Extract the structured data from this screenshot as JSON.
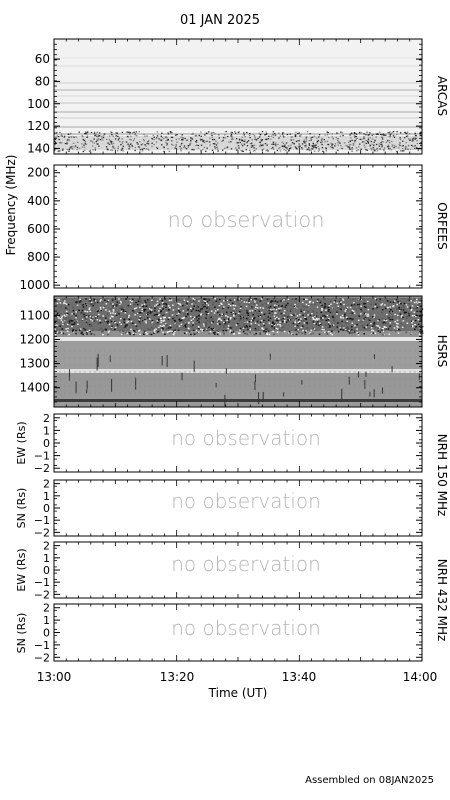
{
  "title": "01 JAN 2025",
  "footer": "Assembled on 08JAN2025",
  "chart_data": [
    {
      "type": "heatmap",
      "instrument": "ARCAS",
      "ylabel": "Frequency (MHz)",
      "yticks": [
        60,
        80,
        100,
        120,
        140
      ],
      "ylim": [
        145,
        42
      ],
      "observed": true
    },
    {
      "type": "heatmap",
      "instrument": "ORFEES",
      "yticks": [
        200,
        400,
        600,
        800,
        1000
      ],
      "ylim": [
        1020,
        145
      ],
      "observed": false,
      "annotation": "no observation"
    },
    {
      "type": "heatmap",
      "instrument": "HSRS",
      "yticks": [
        1100,
        1200,
        1300,
        1400
      ],
      "ylim": [
        1480,
        1020
      ],
      "observed": true
    },
    {
      "type": "heatmap",
      "instrument": "NRH 150 MHz",
      "ylabel": "EW (Rs)",
      "yticks": [
        2,
        1,
        0,
        -1,
        -2
      ],
      "observed": false,
      "annotation": "no observation"
    },
    {
      "type": "heatmap",
      "instrument": "NRH 150 MHz",
      "ylabel": "SN (Rs)",
      "yticks": [
        2,
        1,
        0,
        -1,
        -2
      ],
      "observed": false,
      "annotation": "no observation"
    },
    {
      "type": "heatmap",
      "instrument": "NRH 432 MHz",
      "ylabel": "EW (Rs)",
      "yticks": [
        2,
        1,
        0,
        -1,
        -2
      ],
      "observed": false,
      "annotation": "no observation"
    },
    {
      "type": "heatmap",
      "instrument": "NRH 432 MHz",
      "ylabel": "SN (Rs)",
      "yticks": [
        2,
        1,
        0,
        -1,
        -2
      ],
      "observed": false,
      "annotation": "no observation"
    }
  ],
  "labels": {
    "freq_axis": "Frequency (MHz)",
    "arcas": "ARCAS",
    "orfees": "ORFEES",
    "hsrs": "HSRS",
    "nrh150": "NRH 150 MHz",
    "nrh432": "NRH 432 MHz",
    "ew": "EW (Rs)",
    "sn": "SN (Rs)",
    "no_obs": "no observation"
  },
  "x_axis": {
    "label": "Time (UT)",
    "ticks": [
      "13:00",
      "13:20",
      "13:40",
      "14:00"
    ]
  }
}
